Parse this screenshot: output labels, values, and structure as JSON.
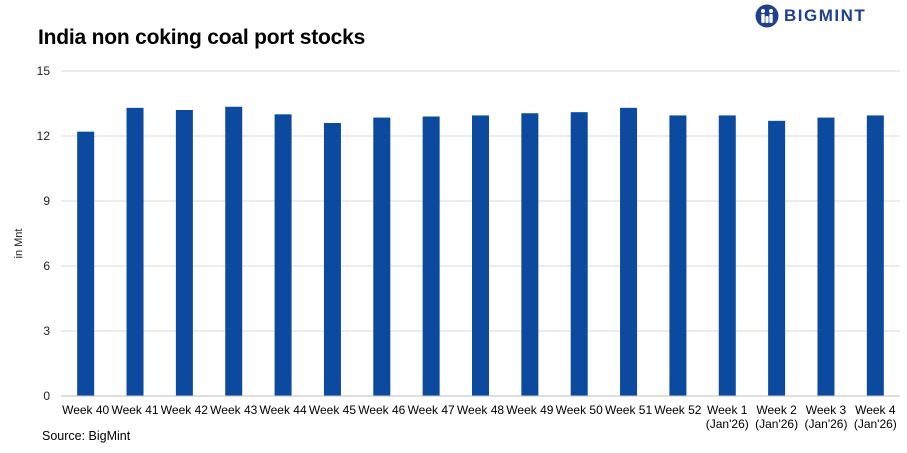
{
  "logo": {
    "text": "BIGMINT",
    "icon": "bigmint-logo-icon",
    "color": "#1f3f8f"
  },
  "source": "Source: BigMint",
  "chart_data": {
    "type": "bar",
    "title": "India non coking coal port stocks",
    "ylabel": "in Mnt",
    "xlabel": "",
    "ylim": [
      0,
      15
    ],
    "yticks": [
      0,
      3,
      6,
      9,
      12,
      15
    ],
    "grid": true,
    "bar_color": "#0b4a9e",
    "categories": [
      [
        "Week 40"
      ],
      [
        "Week 41"
      ],
      [
        "Week 42"
      ],
      [
        "Week 43"
      ],
      [
        "Week 44"
      ],
      [
        "Week 45"
      ],
      [
        "Week 46"
      ],
      [
        "Week 47"
      ],
      [
        "Week 48"
      ],
      [
        "Week 49"
      ],
      [
        "Week 50"
      ],
      [
        "Week 51"
      ],
      [
        "Week 52"
      ],
      [
        "Week 1",
        "(Jan'26)"
      ],
      [
        "Week 2",
        "(Jan'26)"
      ],
      [
        "Week 3",
        "(Jan'26)"
      ],
      [
        "Week 4",
        "(Jan'26)"
      ]
    ],
    "values": [
      12.2,
      13.3,
      13.2,
      13.35,
      13.0,
      12.6,
      12.85,
      12.9,
      12.95,
      13.05,
      13.1,
      13.3,
      12.95,
      12.95,
      12.7,
      12.85,
      12.95
    ]
  }
}
